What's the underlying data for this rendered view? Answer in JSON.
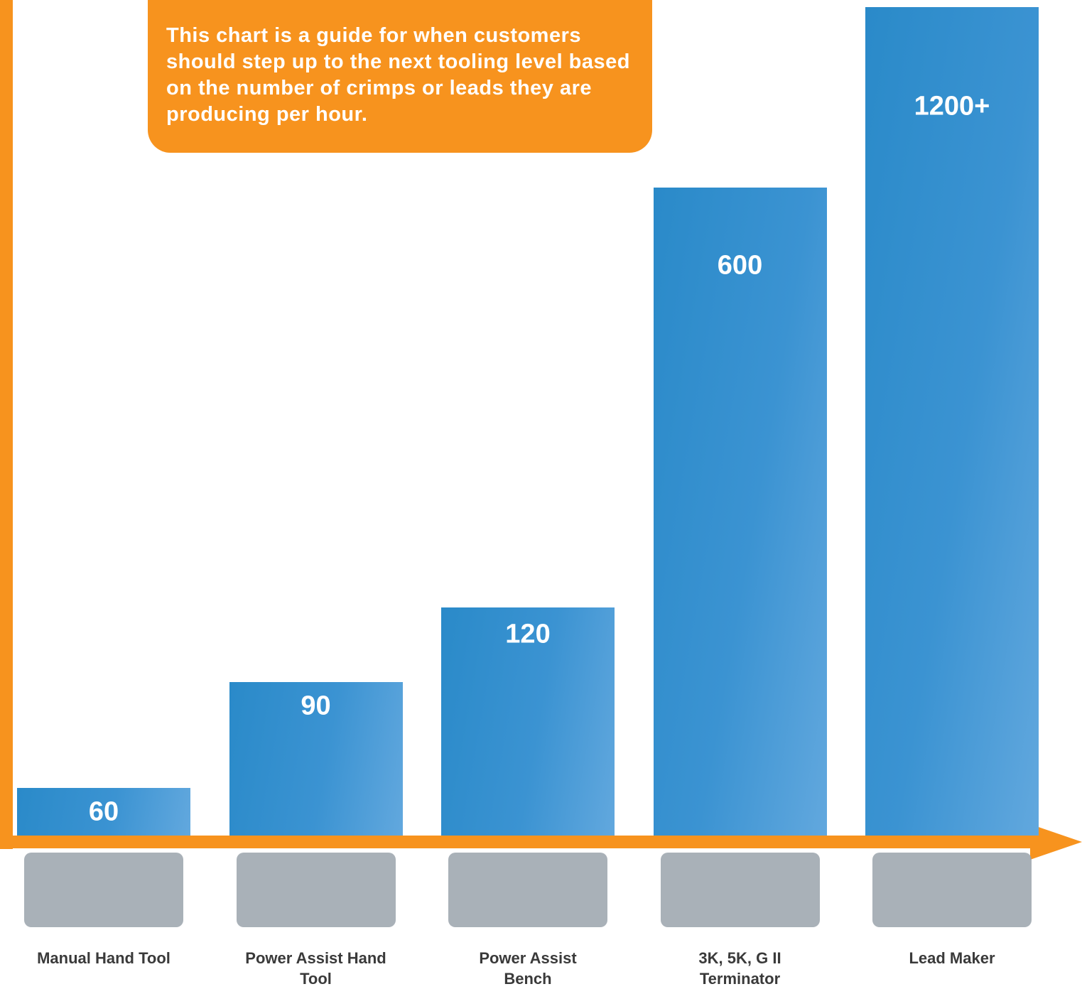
{
  "chart_data": {
    "type": "bar",
    "annotation": "This chart is a guide for when customers should step up to the next tooling level based on the number of crimps or leads they are producing per hour.",
    "categories": [
      "Manual Hand Tool",
      "Power Assist Hand Tool",
      "Power Assist Bench",
      "3K, 5K, G II Terminator",
      "Lead Maker"
    ],
    "values": [
      60,
      90,
      120,
      600,
      1200
    ],
    "value_labels": [
      "60",
      "90",
      "120",
      "600",
      "1200+"
    ],
    "log_scale": true,
    "ylim": [
      50,
      1200
    ],
    "color": "#2a8ac9"
  }
}
